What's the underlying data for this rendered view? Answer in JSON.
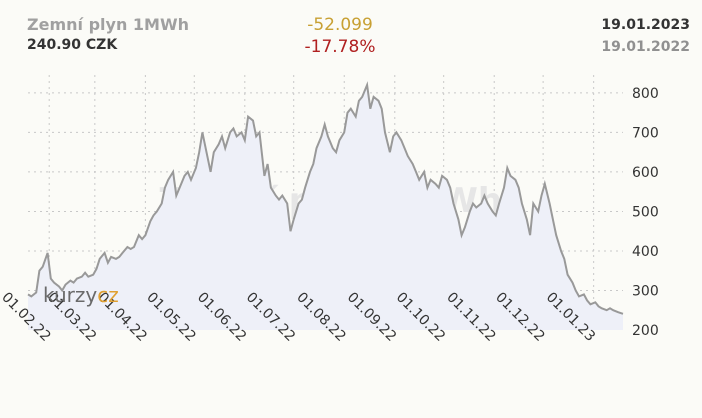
{
  "header": {
    "title": "Zemní plyn 1MWh",
    "price": "240.90 CZK",
    "change_abs": "-52.099",
    "change_pct": "-17.78%",
    "date_to": "19.01.2023",
    "date_from": "19.01.2022"
  },
  "watermark": "Zemní plyn 1MWh",
  "logo": {
    "part1": "kurzy",
    "part2": "cz"
  },
  "colors": {
    "line": "#999999",
    "area": "#eef0f8",
    "grid": "#c8c8c8",
    "change_abs": "#c8a033",
    "change_pct": "#b02020"
  },
  "chart_data": {
    "type": "area",
    "title": "Zemní plyn 1MWh",
    "xlabel": "",
    "ylabel": "",
    "ylim": [
      200,
      850
    ],
    "yticks": [
      200,
      300,
      400,
      500,
      600,
      700,
      800
    ],
    "x_tick_labels": [
      "01.02.22",
      "01.03.22",
      "01.04.22",
      "01.05.22",
      "01.06.22",
      "01.07.22",
      "01.08.22",
      "01.09.22",
      "01.10.22",
      "01.11.22",
      "01.12.22",
      "01.01.23"
    ],
    "grid": true,
    "series": [
      {
        "points": [
          [
            "2022-01-19",
            290
          ],
          [
            "2022-01-21",
            285
          ],
          [
            "2022-01-24",
            295
          ],
          [
            "2022-01-26",
            350
          ],
          [
            "2022-01-28",
            360
          ],
          [
            "2022-01-31",
            395
          ],
          [
            "2022-02-02",
            330
          ],
          [
            "2022-02-04",
            320
          ],
          [
            "2022-02-07",
            310
          ],
          [
            "2022-02-09",
            300
          ],
          [
            "2022-02-11",
            315
          ],
          [
            "2022-02-14",
            325
          ],
          [
            "2022-02-16",
            320
          ],
          [
            "2022-02-18",
            330
          ],
          [
            "2022-02-21",
            335
          ],
          [
            "2022-02-23",
            345
          ],
          [
            "2022-02-25",
            335
          ],
          [
            "2022-02-28",
            340
          ],
          [
            "2022-03-02",
            355
          ],
          [
            "2022-03-04",
            380
          ],
          [
            "2022-03-07",
            395
          ],
          [
            "2022-03-09",
            370
          ],
          [
            "2022-03-11",
            385
          ],
          [
            "2022-03-14",
            380
          ],
          [
            "2022-03-16",
            385
          ],
          [
            "2022-03-18",
            395
          ],
          [
            "2022-03-21",
            410
          ],
          [
            "2022-03-23",
            405
          ],
          [
            "2022-03-25",
            410
          ],
          [
            "2022-03-28",
            440
          ],
          [
            "2022-03-30",
            430
          ],
          [
            "2022-04-01",
            440
          ],
          [
            "2022-04-04",
            475
          ],
          [
            "2022-04-06",
            490
          ],
          [
            "2022-04-08",
            500
          ],
          [
            "2022-04-11",
            520
          ],
          [
            "2022-04-13",
            560
          ],
          [
            "2022-04-15",
            580
          ],
          [
            "2022-04-18",
            600
          ],
          [
            "2022-04-20",
            540
          ],
          [
            "2022-04-22",
            560
          ],
          [
            "2022-04-25",
            590
          ],
          [
            "2022-04-27",
            600
          ],
          [
            "2022-04-29",
            580
          ],
          [
            "2022-05-02",
            610
          ],
          [
            "2022-05-04",
            650
          ],
          [
            "2022-05-06",
            700
          ],
          [
            "2022-05-09",
            640
          ],
          [
            "2022-05-11",
            600
          ],
          [
            "2022-05-13",
            650
          ],
          [
            "2022-05-16",
            670
          ],
          [
            "2022-05-18",
            690
          ],
          [
            "2022-05-20",
            660
          ],
          [
            "2022-05-23",
            700
          ],
          [
            "2022-05-25",
            710
          ],
          [
            "2022-05-27",
            690
          ],
          [
            "2022-05-30",
            700
          ],
          [
            "2022-06-01",
            680
          ],
          [
            "2022-06-03",
            740
          ],
          [
            "2022-06-06",
            730
          ],
          [
            "2022-06-08",
            690
          ],
          [
            "2022-06-10",
            700
          ],
          [
            "2022-06-13",
            590
          ],
          [
            "2022-06-15",
            620
          ],
          [
            "2022-06-17",
            560
          ],
          [
            "2022-06-20",
            540
          ],
          [
            "2022-06-22",
            530
          ],
          [
            "2022-06-24",
            540
          ],
          [
            "2022-06-27",
            520
          ],
          [
            "2022-06-29",
            450
          ],
          [
            "2022-07-01",
            480
          ],
          [
            "2022-07-04",
            520
          ],
          [
            "2022-07-06",
            530
          ],
          [
            "2022-07-08",
            560
          ],
          [
            "2022-07-11",
            600
          ],
          [
            "2022-07-13",
            620
          ],
          [
            "2022-07-15",
            660
          ],
          [
            "2022-07-18",
            690
          ],
          [
            "2022-07-20",
            720
          ],
          [
            "2022-07-22",
            690
          ],
          [
            "2022-07-25",
            660
          ],
          [
            "2022-07-27",
            650
          ],
          [
            "2022-07-29",
            680
          ],
          [
            "2022-08-01",
            700
          ],
          [
            "2022-08-03",
            750
          ],
          [
            "2022-08-05",
            760
          ],
          [
            "2022-08-08",
            740
          ],
          [
            "2022-08-10",
            780
          ],
          [
            "2022-08-12",
            790
          ],
          [
            "2022-08-15",
            820
          ],
          [
            "2022-08-17",
            760
          ],
          [
            "2022-08-19",
            790
          ],
          [
            "2022-08-22",
            780
          ],
          [
            "2022-08-24",
            760
          ],
          [
            "2022-08-26",
            700
          ],
          [
            "2022-08-29",
            650
          ],
          [
            "2022-08-31",
            690
          ],
          [
            "2022-09-02",
            700
          ],
          [
            "2022-09-05",
            680
          ],
          [
            "2022-09-07",
            660
          ],
          [
            "2022-09-09",
            640
          ],
          [
            "2022-09-12",
            620
          ],
          [
            "2022-09-14",
            600
          ],
          [
            "2022-09-16",
            580
          ],
          [
            "2022-09-19",
            600
          ],
          [
            "2022-09-21",
            560
          ],
          [
            "2022-09-23",
            580
          ],
          [
            "2022-09-26",
            570
          ],
          [
            "2022-09-28",
            560
          ],
          [
            "2022-09-30",
            590
          ],
          [
            "2022-10-03",
            580
          ],
          [
            "2022-10-05",
            560
          ],
          [
            "2022-10-07",
            520
          ],
          [
            "2022-10-10",
            480
          ],
          [
            "2022-10-12",
            440
          ],
          [
            "2022-10-14",
            460
          ],
          [
            "2022-10-17",
            500
          ],
          [
            "2022-10-19",
            520
          ],
          [
            "2022-10-21",
            510
          ],
          [
            "2022-10-24",
            520
          ],
          [
            "2022-10-26",
            540
          ],
          [
            "2022-10-28",
            520
          ],
          [
            "2022-10-31",
            500
          ],
          [
            "2022-11-02",
            490
          ],
          [
            "2022-11-04",
            520
          ],
          [
            "2022-11-07",
            560
          ],
          [
            "2022-11-09",
            610
          ],
          [
            "2022-11-11",
            590
          ],
          [
            "2022-11-14",
            580
          ],
          [
            "2022-11-16",
            560
          ],
          [
            "2022-11-18",
            520
          ],
          [
            "2022-11-21",
            480
          ],
          [
            "2022-11-23",
            440
          ],
          [
            "2022-11-25",
            520
          ],
          [
            "2022-11-28",
            500
          ],
          [
            "2022-11-30",
            540
          ],
          [
            "2022-12-02",
            570
          ],
          [
            "2022-12-05",
            520
          ],
          [
            "2022-12-07",
            480
          ],
          [
            "2022-12-09",
            440
          ],
          [
            "2022-12-12",
            400
          ],
          [
            "2022-12-14",
            380
          ],
          [
            "2022-12-16",
            340
          ],
          [
            "2022-12-19",
            320
          ],
          [
            "2022-12-21",
            300
          ],
          [
            "2022-12-23",
            285
          ],
          [
            "2022-12-26",
            290
          ],
          [
            "2022-12-28",
            275
          ],
          [
            "2022-12-30",
            265
          ],
          [
            "2023-01-02",
            270
          ],
          [
            "2023-01-04",
            260
          ],
          [
            "2023-01-06",
            255
          ],
          [
            "2023-01-09",
            250
          ],
          [
            "2023-01-11",
            255
          ],
          [
            "2023-01-13",
            250
          ],
          [
            "2023-01-16",
            245
          ],
          [
            "2023-01-19",
            241
          ]
        ]
      }
    ]
  }
}
